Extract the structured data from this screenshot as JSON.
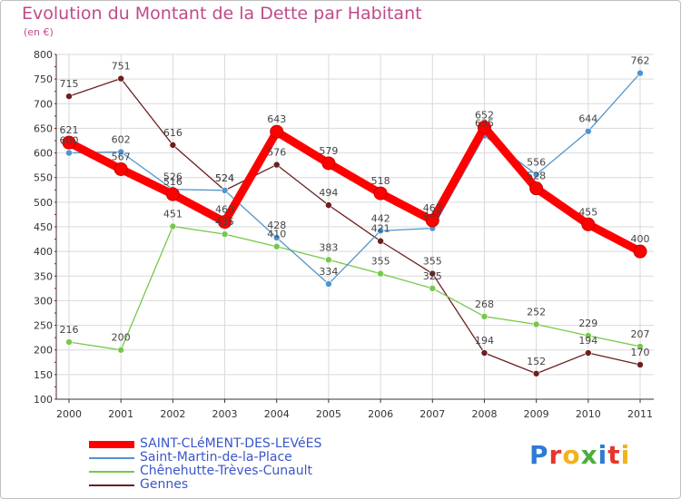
{
  "title": "Evolution du Montant de la Dette par Habitant",
  "unit": "(en €)",
  "logo": "Proxiti",
  "chart_data": {
    "type": "line",
    "title": "Evolution du Montant de la Dette par Habitant",
    "ylabel": "(en €)",
    "xlabel": "",
    "ylim": [
      100,
      800
    ],
    "yticks": [
      100,
      150,
      200,
      250,
      300,
      350,
      400,
      450,
      500,
      550,
      600,
      650,
      700,
      750,
      800
    ],
    "grid": true,
    "legend_position": "bottom-left",
    "categories": [
      "2000",
      "2001",
      "2002",
      "2003",
      "2004",
      "2005",
      "2006",
      "2007",
      "2008",
      "2009",
      "2010",
      "2011"
    ],
    "series": [
      {
        "name": "SAINT-CLéMENT-DES-LEVéES",
        "color": "#ff0000",
        "values": [
          621,
          567,
          516,
          460,
          643,
          579,
          518,
          463,
          652,
          528,
          455,
          400
        ]
      },
      {
        "name": "Saint-Martin-de-la-Place",
        "color": "#4f94cd",
        "values": [
          600,
          602,
          526,
          524,
          428,
          334,
          442,
          447,
          635,
          556,
          644,
          762
        ]
      },
      {
        "name": "Chênehutte-Trèves-Cunault",
        "color": "#77c84a",
        "values": [
          216,
          200,
          451,
          435,
          410,
          383,
          355,
          325,
          268,
          252,
          229,
          207
        ]
      },
      {
        "name": "Gennes",
        "color": "#6b1f1f",
        "values": [
          715,
          751,
          616,
          524,
          576,
          494,
          421,
          355,
          194,
          152,
          194,
          170
        ]
      }
    ]
  }
}
